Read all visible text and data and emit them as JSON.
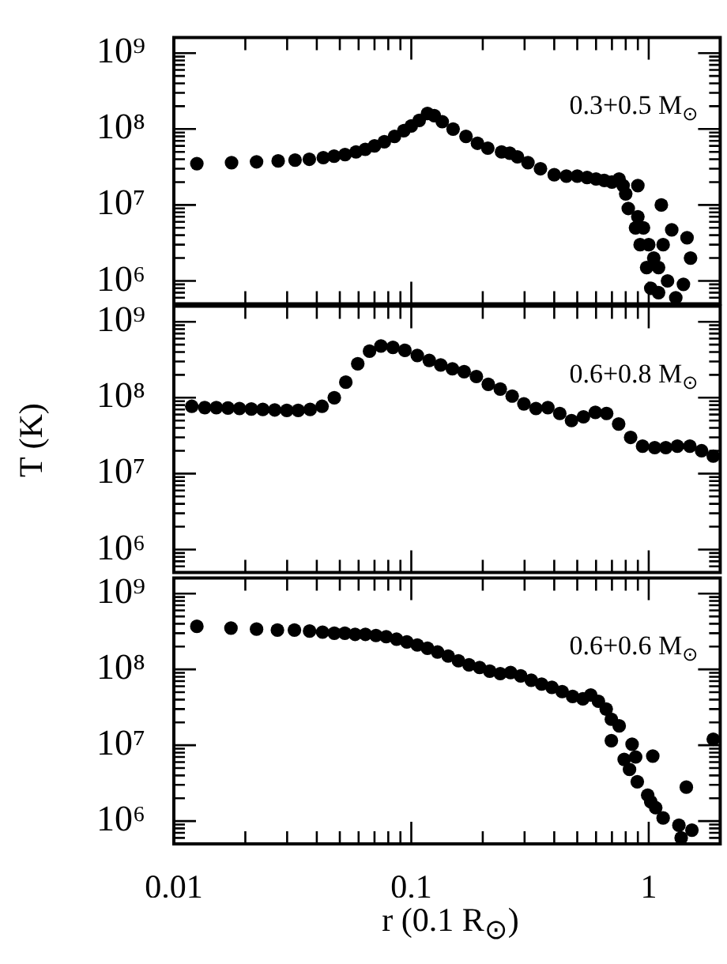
{
  "chart_data": [
    {
      "type": "scatter",
      "marker": "circle",
      "log": "xy",
      "tick_labels": "y",
      "annotations": [
        "0.3+0.5 M$_{⊙}$"
      ],
      "xlim": [
        0.01,
        2
      ],
      "ylim": [
        500000,
        1600000000
      ],
      "xticks": [
        0.01,
        {
          "value": 0.02,
          "label": null
        },
        {
          "value": 0.03,
          "label": null
        },
        {
          "value": 0.04,
          "label": null
        },
        {
          "value": 0.05,
          "label": null
        },
        {
          "value": 0.06,
          "label": null
        },
        {
          "value": 0.07,
          "label": null
        },
        {
          "value": 0.08,
          "label": null
        },
        {
          "value": 0.09,
          "label": null
        },
        0.1,
        {
          "value": 0.2,
          "label": null
        },
        {
          "value": 0.3,
          "label": null
        },
        {
          "value": 0.4,
          "label": null
        },
        {
          "value": 0.5,
          "label": null
        },
        {
          "value": 0.6,
          "label": null
        },
        {
          "value": 0.7,
          "label": null
        },
        {
          "value": 0.8,
          "label": null
        },
        {
          "value": 0.9,
          "label": null
        },
        1
      ],
      "yticks": [
        {
          "value": 600000,
          "label": null
        },
        {
          "value": 700000,
          "label": null
        },
        {
          "value": 800000,
          "label": null
        },
        {
          "value": 900000,
          "label": null
        },
        {
          "value": 1000000,
          "label": "10⁶"
        },
        {
          "value": 2000000,
          "label": null
        },
        {
          "value": 3000000,
          "label": null
        },
        {
          "value": 4000000,
          "label": null
        },
        {
          "value": 5000000,
          "label": null
        },
        {
          "value": 6000000,
          "label": null
        },
        {
          "value": 7000000,
          "label": null
        },
        {
          "value": 8000000,
          "label": null
        },
        {
          "value": 9000000,
          "label": null
        },
        {
          "value": 10000000,
          "label": "10⁷"
        },
        {
          "value": 20000000,
          "label": null
        },
        {
          "value": 30000000,
          "label": null
        },
        {
          "value": 40000000,
          "label": null
        },
        {
          "value": 50000000,
          "label": null
        },
        {
          "value": 60000000,
          "label": null
        },
        {
          "value": 70000000,
          "label": null
        },
        {
          "value": 80000000,
          "label": null
        },
        {
          "value": 90000000,
          "label": null
        },
        {
          "value": 100000000,
          "label": "10⁸"
        },
        {
          "value": 200000000,
          "label": null
        },
        {
          "value": 300000000,
          "label": null
        },
        {
          "value": 400000000,
          "label": null
        },
        {
          "value": 500000000,
          "label": null
        },
        {
          "value": 600000000,
          "label": null
        },
        {
          "value": 700000000,
          "label": null
        },
        {
          "value": 800000000,
          "label": null
        },
        {
          "value": 900000000,
          "label": null
        },
        {
          "value": 1000000000,
          "label": "10⁹"
        }
      ],
      "series": [
        {
          "color": "#000000",
          "x": [
            0.0125,
            0.0175,
            0.0223,
            0.0275,
            0.0324,
            0.0372,
            0.0426,
            0.0473,
            0.0526,
            0.0585,
            0.064,
            0.07,
            0.077,
            0.085,
            0.093,
            0.1,
            0.108,
            0.117,
            0.125,
            0.135,
            0.15,
            0.17,
            0.19,
            0.21,
            0.24,
            0.26,
            0.28,
            0.31,
            0.35,
            0.4,
            0.45,
            0.5,
            0.55,
            0.6,
            0.65,
            0.7,
            0.75,
            0.78,
            0.8,
            0.85,
            0.9,
            0.95,
            1.0,
            1.05,
            1.1,
            1.2,
            0.82,
            0.88,
            0.92,
            0.98,
            1.02,
            1.1,
            1.3,
            1.4,
            1.15,
            1.45,
            1.5,
            1.13,
            1.25,
            0.9
          ],
          "values": [
            35000000,
            36000000,
            37000000,
            38000000,
            39000000,
            40000000,
            42000000,
            44000000,
            46000000,
            50000000,
            54000000,
            60000000,
            68000000,
            80000000,
            95000000,
            110000000,
            130000000,
            160000000,
            150000000,
            125000000,
            100000000,
            80000000,
            65000000,
            56000000,
            50000000,
            48000000,
            43000000,
            36000000,
            30000000,
            25000000,
            24000000,
            24000000,
            23000000,
            22000000,
            21000000,
            20000000,
            22000000,
            18000000,
            14000000,
            null,
            7000000,
            5000000,
            3000000,
            2000000,
            1500000,
            1000000,
            9000000,
            5000000,
            3000000,
            1500000,
            800000,
            700000,
            600000,
            900000,
            3000000,
            3700000,
            2000000,
            10000000,
            4700000,
            18000000
          ]
        }
      ]
    },
    {
      "type": "scatter",
      "marker": "circle",
      "log": "xy",
      "tick_labels": "y",
      "ylabel": "T (K)",
      "annotations": [
        "0.6+0.8 M$_{⊙}$"
      ],
      "xlim": [
        0.01,
        2
      ],
      "ylim": [
        500000,
        1600000000
      ],
      "xticks": [
        0.01,
        {
          "value": 0.02,
          "label": null
        },
        {
          "value": 0.03,
          "label": null
        },
        {
          "value": 0.04,
          "label": null
        },
        {
          "value": 0.05,
          "label": null
        },
        {
          "value": 0.06,
          "label": null
        },
        {
          "value": 0.07,
          "label": null
        },
        {
          "value": 0.08,
          "label": null
        },
        {
          "value": 0.09,
          "label": null
        },
        0.1,
        {
          "value": 0.2,
          "label": null
        },
        {
          "value": 0.3,
          "label": null
        },
        {
          "value": 0.4,
          "label": null
        },
        {
          "value": 0.5,
          "label": null
        },
        {
          "value": 0.6,
          "label": null
        },
        {
          "value": 0.7,
          "label": null
        },
        {
          "value": 0.8,
          "label": null
        },
        {
          "value": 0.9,
          "label": null
        },
        1
      ],
      "yticks": [
        {
          "value": 600000,
          "label": null
        },
        {
          "value": 700000,
          "label": null
        },
        {
          "value": 800000,
          "label": null
        },
        {
          "value": 900000,
          "label": null
        },
        {
          "value": 1000000,
          "label": "10⁶"
        },
        {
          "value": 2000000,
          "label": null
        },
        {
          "value": 3000000,
          "label": null
        },
        {
          "value": 4000000,
          "label": null
        },
        {
          "value": 5000000,
          "label": null
        },
        {
          "value": 6000000,
          "label": null
        },
        {
          "value": 7000000,
          "label": null
        },
        {
          "value": 8000000,
          "label": null
        },
        {
          "value": 9000000,
          "label": null
        },
        {
          "value": 10000000,
          "label": "10⁷"
        },
        {
          "value": 20000000,
          "label": null
        },
        {
          "value": 30000000,
          "label": null
        },
        {
          "value": 40000000,
          "label": null
        },
        {
          "value": 50000000,
          "label": null
        },
        {
          "value": 60000000,
          "label": null
        },
        {
          "value": 70000000,
          "label": null
        },
        {
          "value": 80000000,
          "label": null
        },
        {
          "value": 90000000,
          "label": null
        },
        {
          "value": 100000000,
          "label": "10⁸"
        },
        {
          "value": 200000000,
          "label": null
        },
        {
          "value": 300000000,
          "label": null
        },
        {
          "value": 400000000,
          "label": null
        },
        {
          "value": 500000000,
          "label": null
        },
        {
          "value": 600000000,
          "label": null
        },
        {
          "value": 700000000,
          "label": null
        },
        {
          "value": 800000000,
          "label": null
        },
        {
          "value": 900000000,
          "label": null
        },
        {
          "value": 1000000000,
          "label": "10⁹"
        }
      ],
      "series": [
        {
          "color": "#000000",
          "x": [
            0.0119,
            0.0135,
            0.0151,
            0.0169,
            0.0189,
            0.0212,
            0.0237,
            0.0266,
            0.0299,
            0.0334,
            0.0375,
            0.0421,
            0.0474,
            0.053,
            0.0595,
            0.0667,
            0.0745,
            0.0837,
            0.094,
            0.106,
            0.119,
            0.133,
            0.149,
            0.167,
            0.188,
            0.211,
            0.237,
            0.266,
            0.298,
            0.335,
            0.376,
            0.422,
            0.473,
            0.531,
            0.596,
            0.665,
            0.747,
            0.839,
            0.942,
            1.06,
            1.18,
            1.32,
            1.49,
            1.67,
            1.87
          ],
          "values": [
            77000000,
            74000000,
            74000000,
            73000000,
            72000000,
            71000000,
            70000000,
            69000000,
            68000000,
            68000000,
            70000000,
            77000000,
            100000000,
            160000000,
            280000000,
            410000000,
            480000000,
            460000000,
            420000000,
            360000000,
            310000000,
            270000000,
            240000000,
            220000000,
            190000000,
            150000000,
            130000000,
            105000000,
            83000000,
            72000000,
            74000000,
            62000000,
            50000000,
            56000000,
            64000000,
            62000000,
            45000000,
            30000000,
            23000000,
            22000000,
            22000000,
            23000000,
            23000000,
            20000000,
            17000000
          ]
        }
      ]
    },
    {
      "type": "scatter",
      "marker": "circle",
      "log": "xy",
      "xlabel": "r (0.1 R$_{⊙}$)",
      "annotations": [
        "0.6+0.6 M$_{⊙}$"
      ],
      "xlim": [
        0.01,
        2
      ],
      "ylim": [
        500000,
        1600000000
      ],
      "xticks": [
        0.01,
        {
          "value": 0.02,
          "label": null
        },
        {
          "value": 0.03,
          "label": null
        },
        {
          "value": 0.04,
          "label": null
        },
        {
          "value": 0.05,
          "label": null
        },
        {
          "value": 0.06,
          "label": null
        },
        {
          "value": 0.07,
          "label": null
        },
        {
          "value": 0.08,
          "label": null
        },
        {
          "value": 0.09,
          "label": null
        },
        0.1,
        {
          "value": 0.2,
          "label": null
        },
        {
          "value": 0.3,
          "label": null
        },
        {
          "value": 0.4,
          "label": null
        },
        {
          "value": 0.5,
          "label": null
        },
        {
          "value": 0.6,
          "label": null
        },
        {
          "value": 0.7,
          "label": null
        },
        {
          "value": 0.8,
          "label": null
        },
        {
          "value": 0.9,
          "label": null
        },
        1
      ],
      "yticks": [
        {
          "value": 600000,
          "label": null
        },
        {
          "value": 700000,
          "label": null
        },
        {
          "value": 800000,
          "label": null
        },
        {
          "value": 900000,
          "label": null
        },
        {
          "value": 1000000,
          "label": "10⁶"
        },
        {
          "value": 2000000,
          "label": null
        },
        {
          "value": 3000000,
          "label": null
        },
        {
          "value": 4000000,
          "label": null
        },
        {
          "value": 5000000,
          "label": null
        },
        {
          "value": 6000000,
          "label": null
        },
        {
          "value": 7000000,
          "label": null
        },
        {
          "value": 8000000,
          "label": null
        },
        {
          "value": 9000000,
          "label": null
        },
        {
          "value": 10000000,
          "label": "10⁷"
        },
        {
          "value": 20000000,
          "label": null
        },
        {
          "value": 30000000,
          "label": null
        },
        {
          "value": 40000000,
          "label": null
        },
        {
          "value": 50000000,
          "label": null
        },
        {
          "value": 60000000,
          "label": null
        },
        {
          "value": 70000000,
          "label": null
        },
        {
          "value": 80000000,
          "label": null
        },
        {
          "value": 90000000,
          "label": null
        },
        {
          "value": 100000000,
          "label": "10⁸"
        },
        {
          "value": 200000000,
          "label": null
        },
        {
          "value": 300000000,
          "label": null
        },
        {
          "value": 400000000,
          "label": null
        },
        {
          "value": 500000000,
          "label": null
        },
        {
          "value": 600000000,
          "label": null
        },
        {
          "value": 700000000,
          "label": null
        },
        {
          "value": 800000000,
          "label": null
        },
        {
          "value": 900000000,
          "label": null
        },
        {
          "value": 1000000000,
          "label": "10⁹"
        }
      ],
      "series": [
        {
          "color": "#000000",
          "x": [
            0.0125,
            0.0174,
            0.0223,
            0.0273,
            0.0322,
            0.0373,
            0.0423,
            0.0474,
            0.0525,
            0.058,
            0.0641,
            0.071,
            0.0784,
            0.0867,
            0.0958,
            0.106,
            0.117,
            0.129,
            0.143,
            0.158,
            0.175,
            0.194,
            0.214,
            0.237,
            0.262,
            0.289,
            0.32,
            0.354,
            0.391,
            0.432,
            0.478,
            0.528,
            0.57,
            0.614,
            0.662,
            0.696,
            0.751,
            0.696,
            0.851,
            0.788,
            0.83,
            0.881,
            0.895,
            0.99,
            1.02,
            1.07,
            1.15,
            1.04,
            1.34,
            1.37,
            1.52,
            1.44,
            1.87
          ],
          "values": [
            370000000,
            350000000,
            340000000,
            330000000,
            330000000,
            320000000,
            310000000,
            300000000,
            300000000,
            290000000,
            290000000,
            280000000,
            270000000,
            250000000,
            230000000,
            210000000,
            190000000,
            170000000,
            150000000,
            130000000,
            115000000,
            106000000,
            95000000,
            88000000,
            91000000,
            82000000,
            72000000,
            64000000,
            58000000,
            51000000,
            44000000,
            41000000,
            46000000,
            38000000,
            30000000,
            22000000,
            18000000,
            11500000,
            10300000,
            6500000,
            4800000,
            7000000,
            3300000,
            2200000,
            1800000,
            1500000,
            1100000,
            7200000,
            880000,
            600000,
            760000,
            2800000,
            12000000
          ]
        }
      ]
    }
  ]
}
